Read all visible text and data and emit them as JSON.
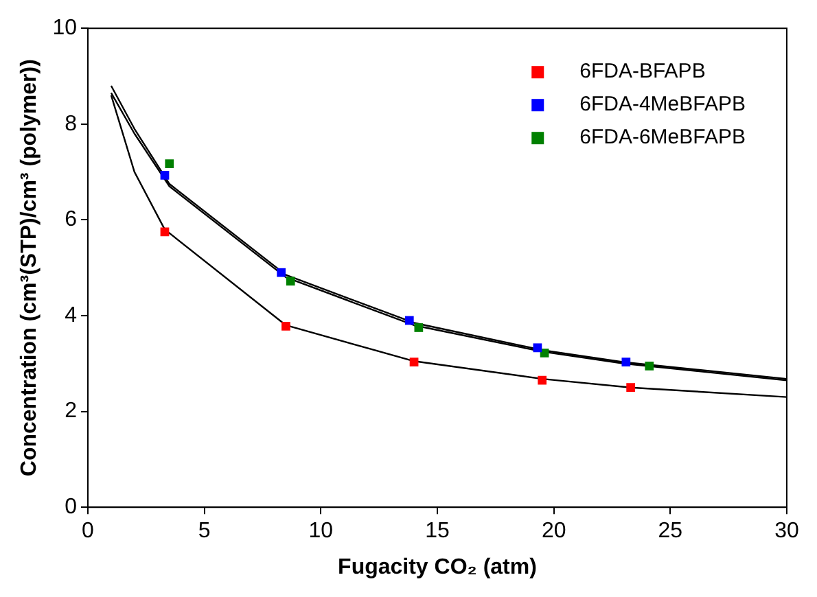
{
  "chart_data": {
    "type": "scatter",
    "xlabel": "Fugacity CO₂ (atm)",
    "ylabel": "Concentration (cm³(STP)/cm³ (polymer))",
    "xlim": [
      0,
      30
    ],
    "xticks": [
      0,
      5,
      10,
      15,
      20,
      25,
      30
    ],
    "ylim": [
      0,
      10
    ],
    "yticks": [
      0,
      2,
      4,
      6,
      8,
      10
    ],
    "grid": false,
    "legend": "top right",
    "marker": "square",
    "series": [
      {
        "name": "6FDA-BFAPB",
        "color": "#ff0000",
        "x": [
          3.3,
          8.5,
          14.0,
          19.5,
          23.3
        ],
        "values": [
          5.75,
          3.78,
          3.03,
          2.65,
          2.5
        ]
      },
      {
        "name": "6FDA-4MeBFAPB",
        "color": "#0000ff",
        "x": [
          3.3,
          8.3,
          13.8,
          19.3,
          23.1
        ],
        "values": [
          6.93,
          4.9,
          3.9,
          3.33,
          3.03
        ]
      },
      {
        "name": "6FDA-6MeBFAPB",
        "color": "#008000",
        "x": [
          3.5,
          8.7,
          14.2,
          19.6,
          24.1
        ],
        "values": [
          7.17,
          4.72,
          3.75,
          3.22,
          2.95
        ]
      },
      {
        "type": "line",
        "color": "#000000",
        "marker": "none",
        "x": [
          1,
          2,
          3.3,
          8.5,
          14,
          19.5,
          23.3,
          30
        ],
        "values": [
          8.6,
          7.0,
          5.8,
          3.8,
          3.05,
          2.68,
          2.5,
          2.3
        ]
      },
      {
        "type": "line",
        "color": "#000000",
        "marker": "none",
        "x": [
          1,
          2,
          3.5,
          8.5,
          14,
          19.5,
          23,
          30
        ],
        "values": [
          8.8,
          7.9,
          6.75,
          4.85,
          3.85,
          3.28,
          3.03,
          2.68
        ]
      },
      {
        "type": "line",
        "color": "#000000",
        "marker": "none",
        "x": [
          1,
          2,
          3.5,
          8.5,
          14,
          19.5,
          23,
          30
        ],
        "values": [
          8.65,
          7.8,
          6.7,
          4.8,
          3.8,
          3.25,
          3.0,
          2.65
        ]
      }
    ]
  }
}
